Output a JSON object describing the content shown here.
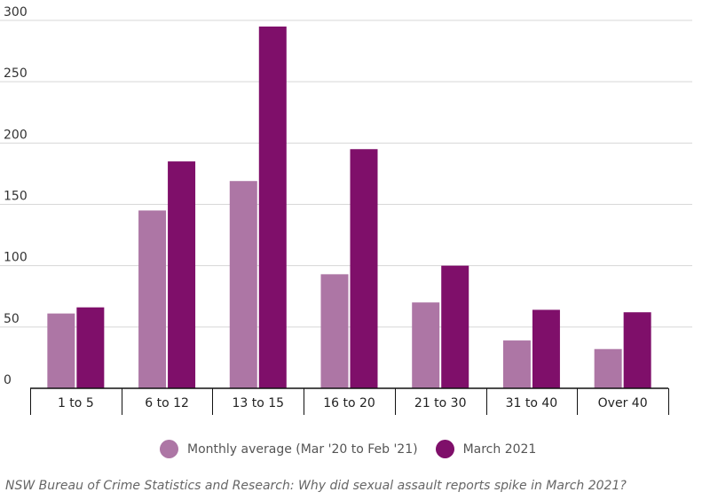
{
  "chart_data": {
    "type": "bar",
    "categories": [
      "1 to 5",
      "6 to 12",
      "13 to 15",
      "16 to 20",
      "21 to 30",
      "31 to 40",
      "Over 40"
    ],
    "series": [
      {
        "name": "Monthly average (Mar '20 to Feb '21)",
        "color": "#ad76a5",
        "values": [
          61,
          145,
          169,
          93,
          70,
          39,
          32
        ]
      },
      {
        "name": "March 2021",
        "color": "#7f0f6a",
        "values": [
          66,
          185,
          295,
          195,
          100,
          64,
          62
        ]
      }
    ],
    "ylim": [
      0,
      300
    ],
    "yticks": [
      "0",
      "50",
      "100",
      "150",
      "200",
      "250",
      "300"
    ],
    "grid": true,
    "legend_position": "bottom"
  },
  "legend": {
    "items": [
      {
        "label": "Monthly average (Mar '20 to Feb '21)",
        "color": "#ad76a5"
      },
      {
        "label": "March 2021",
        "color": "#7f0f6a"
      }
    ]
  },
  "source_text": "NSW Bureau of Crime Statistics and Research: Why did sexual assault reports spike in March 2021?"
}
